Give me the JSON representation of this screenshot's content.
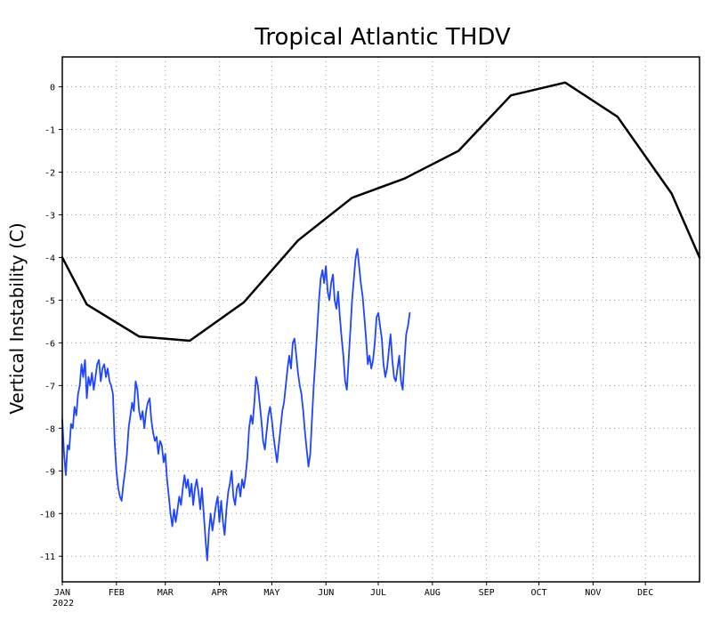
{
  "chart_data": {
    "type": "line",
    "title": "Tropical Atlantic THDV",
    "ylabel": "Vertical Instability (C)",
    "xlabel": "",
    "year_label": "2022",
    "ylim": [
      -11.6,
      0.7
    ],
    "xlim": [
      0,
      365
    ],
    "grid": true,
    "months": [
      {
        "label": "JAN",
        "day": 0
      },
      {
        "label": "FEB",
        "day": 31
      },
      {
        "label": "MAR",
        "day": 59
      },
      {
        "label": "APR",
        "day": 90
      },
      {
        "label": "MAY",
        "day": 120
      },
      {
        "label": "JUN",
        "day": 151
      },
      {
        "label": "JUL",
        "day": 181
      },
      {
        "label": "AUG",
        "day": 212
      },
      {
        "label": "SEP",
        "day": 243
      },
      {
        "label": "OCT",
        "day": 273
      },
      {
        "label": "NOV",
        "day": 304
      },
      {
        "label": "DEC",
        "day": 334
      }
    ],
    "yticks": [
      {
        "value": 0,
        "label": "0"
      },
      {
        "value": -1,
        "label": "-1"
      },
      {
        "value": -2,
        "label": "-2"
      },
      {
        "value": -3,
        "label": "-3"
      },
      {
        "value": -4,
        "label": "-4"
      },
      {
        "value": -5,
        "label": "-5"
      },
      {
        "value": -6,
        "label": "-6"
      },
      {
        "value": -7,
        "label": "-7"
      },
      {
        "value": -8,
        "label": "-8"
      },
      {
        "value": -9,
        "label": "-9"
      },
      {
        "value": -10,
        "label": "-10"
      },
      {
        "value": -11,
        "label": "-11"
      }
    ],
    "series": [
      {
        "color": "#000000",
        "points": [
          [
            0,
            -4.0
          ],
          [
            14,
            -5.1
          ],
          [
            44,
            -5.85
          ],
          [
            73,
            -5.95
          ],
          [
            104,
            -5.05
          ],
          [
            135,
            -3.6
          ],
          [
            166,
            -2.6
          ],
          [
            196,
            -2.15
          ],
          [
            227,
            -1.5
          ],
          [
            257,
            -0.2
          ],
          [
            288,
            0.1
          ],
          [
            318,
            -0.7
          ],
          [
            349,
            -2.5
          ],
          [
            365,
            -4.0
          ]
        ]
      },
      {
        "color": "#1f45ff",
        "points": [
          [
            0,
            -7.8
          ],
          [
            1,
            -8.6
          ],
          [
            2,
            -9.1
          ],
          [
            3,
            -8.4
          ],
          [
            4,
            -8.5
          ],
          [
            5,
            -7.9
          ],
          [
            6,
            -8.0
          ],
          [
            7,
            -7.5
          ],
          [
            8,
            -7.7
          ],
          [
            9,
            -7.2
          ],
          [
            10,
            -7.0
          ],
          [
            11,
            -6.5
          ],
          [
            12,
            -6.8
          ],
          [
            13,
            -6.4
          ],
          [
            14,
            -7.3
          ],
          [
            15,
            -6.8
          ],
          [
            16,
            -7.0
          ],
          [
            17,
            -6.7
          ],
          [
            18,
            -7.1
          ],
          [
            19,
            -6.8
          ],
          [
            20,
            -6.5
          ],
          [
            21,
            -6.4
          ],
          [
            22,
            -6.9
          ],
          [
            23,
            -6.6
          ],
          [
            24,
            -6.5
          ],
          [
            25,
            -6.8
          ],
          [
            26,
            -6.6
          ],
          [
            27,
            -6.9
          ],
          [
            28,
            -7.0
          ],
          [
            29,
            -7.2
          ],
          [
            30,
            -8.3
          ],
          [
            31,
            -9.0
          ],
          [
            32,
            -9.4
          ],
          [
            33,
            -9.6
          ],
          [
            34,
            -9.7
          ],
          [
            35,
            -9.3
          ],
          [
            36,
            -9.0
          ],
          [
            37,
            -8.6
          ],
          [
            38,
            -8.0
          ],
          [
            39,
            -7.7
          ],
          [
            40,
            -7.4
          ],
          [
            41,
            -7.6
          ],
          [
            42,
            -6.9
          ],
          [
            43,
            -7.1
          ],
          [
            44,
            -7.6
          ],
          [
            45,
            -7.8
          ],
          [
            46,
            -7.6
          ],
          [
            47,
            -8.0
          ],
          [
            48,
            -7.6
          ],
          [
            49,
            -7.4
          ],
          [
            50,
            -7.3
          ],
          [
            51,
            -7.8
          ],
          [
            52,
            -8.1
          ],
          [
            53,
            -8.3
          ],
          [
            54,
            -8.2
          ],
          [
            55,
            -8.6
          ],
          [
            56,
            -8.3
          ],
          [
            57,
            -8.4
          ],
          [
            58,
            -8.8
          ],
          [
            59,
            -8.6
          ],
          [
            60,
            -9.2
          ],
          [
            61,
            -9.6
          ],
          [
            62,
            -10.0
          ],
          [
            63,
            -10.3
          ],
          [
            64,
            -9.9
          ],
          [
            65,
            -10.2
          ],
          [
            66,
            -9.9
          ],
          [
            67,
            -9.6
          ],
          [
            68,
            -9.8
          ],
          [
            69,
            -9.4
          ],
          [
            70,
            -9.1
          ],
          [
            71,
            -9.4
          ],
          [
            72,
            -9.2
          ],
          [
            73,
            -9.6
          ],
          [
            74,
            -9.3
          ],
          [
            75,
            -9.8
          ],
          [
            76,
            -9.4
          ],
          [
            77,
            -9.2
          ],
          [
            78,
            -9.5
          ],
          [
            79,
            -9.9
          ],
          [
            80,
            -9.4
          ],
          [
            81,
            -10.0
          ],
          [
            82,
            -10.6
          ],
          [
            83,
            -11.1
          ],
          [
            84,
            -10.4
          ],
          [
            85,
            -10.0
          ],
          [
            86,
            -10.4
          ],
          [
            87,
            -10.1
          ],
          [
            88,
            -9.8
          ],
          [
            89,
            -9.6
          ],
          [
            90,
            -10.2
          ],
          [
            91,
            -9.7
          ],
          [
            92,
            -10.2
          ],
          [
            93,
            -10.5
          ],
          [
            94,
            -9.9
          ],
          [
            95,
            -9.5
          ],
          [
            96,
            -9.3
          ],
          [
            97,
            -9.0
          ],
          [
            98,
            -9.6
          ],
          [
            99,
            -9.8
          ],
          [
            100,
            -9.4
          ],
          [
            101,
            -9.3
          ],
          [
            102,
            -9.6
          ],
          [
            103,
            -9.2
          ],
          [
            104,
            -9.4
          ],
          [
            105,
            -9.1
          ],
          [
            106,
            -8.7
          ],
          [
            107,
            -8.0
          ],
          [
            108,
            -7.7
          ],
          [
            109,
            -7.9
          ],
          [
            110,
            -7.4
          ],
          [
            111,
            -6.8
          ],
          [
            112,
            -7.0
          ],
          [
            113,
            -7.4
          ],
          [
            114,
            -7.8
          ],
          [
            115,
            -8.3
          ],
          [
            116,
            -8.5
          ],
          [
            117,
            -8.1
          ],
          [
            118,
            -7.7
          ],
          [
            119,
            -7.5
          ],
          [
            120,
            -7.8
          ],
          [
            121,
            -8.2
          ],
          [
            122,
            -8.5
          ],
          [
            123,
            -8.8
          ],
          [
            124,
            -8.4
          ],
          [
            125,
            -8.0
          ],
          [
            126,
            -7.6
          ],
          [
            127,
            -7.4
          ],
          [
            128,
            -7.0
          ],
          [
            129,
            -6.6
          ],
          [
            130,
            -6.3
          ],
          [
            131,
            -6.6
          ],
          [
            132,
            -6.0
          ],
          [
            133,
            -5.9
          ],
          [
            134,
            -6.3
          ],
          [
            135,
            -6.7
          ],
          [
            136,
            -7.0
          ],
          [
            137,
            -7.2
          ],
          [
            138,
            -7.6
          ],
          [
            139,
            -8.1
          ],
          [
            140,
            -8.5
          ],
          [
            141,
            -8.9
          ],
          [
            142,
            -8.6
          ],
          [
            143,
            -7.8
          ],
          [
            144,
            -7.0
          ],
          [
            145,
            -6.4
          ],
          [
            146,
            -5.7
          ],
          [
            147,
            -5.0
          ],
          [
            148,
            -4.5
          ],
          [
            149,
            -4.3
          ],
          [
            150,
            -4.6
          ],
          [
            151,
            -4.2
          ],
          [
            152,
            -4.8
          ],
          [
            153,
            -5.0
          ],
          [
            154,
            -4.6
          ],
          [
            155,
            -4.4
          ],
          [
            156,
            -5.0
          ],
          [
            157,
            -5.2
          ],
          [
            158,
            -4.8
          ],
          [
            159,
            -5.4
          ],
          [
            160,
            -5.9
          ],
          [
            161,
            -6.3
          ],
          [
            162,
            -6.9
          ],
          [
            163,
            -7.1
          ],
          [
            164,
            -6.4
          ],
          [
            165,
            -5.7
          ],
          [
            166,
            -5.0
          ],
          [
            167,
            -4.5
          ],
          [
            168,
            -4.0
          ],
          [
            169,
            -3.8
          ],
          [
            170,
            -4.2
          ],
          [
            171,
            -4.6
          ],
          [
            172,
            -4.9
          ],
          [
            173,
            -5.4
          ],
          [
            174,
            -5.9
          ],
          [
            175,
            -6.5
          ],
          [
            176,
            -6.3
          ],
          [
            177,
            -6.6
          ],
          [
            178,
            -6.4
          ],
          [
            179,
            -6.0
          ],
          [
            180,
            -5.4
          ],
          [
            181,
            -5.3
          ],
          [
            182,
            -5.6
          ],
          [
            183,
            -5.9
          ],
          [
            184,
            -6.5
          ],
          [
            185,
            -6.8
          ],
          [
            186,
            -6.6
          ],
          [
            187,
            -6.2
          ],
          [
            188,
            -5.8
          ],
          [
            189,
            -6.4
          ],
          [
            190,
            -6.8
          ],
          [
            191,
            -6.9
          ],
          [
            192,
            -6.6
          ],
          [
            193,
            -6.3
          ],
          [
            194,
            -6.9
          ],
          [
            195,
            -7.1
          ],
          [
            196,
            -6.4
          ],
          [
            197,
            -5.8
          ],
          [
            198,
            -5.6
          ],
          [
            199,
            -5.3
          ]
        ]
      }
    ]
  }
}
